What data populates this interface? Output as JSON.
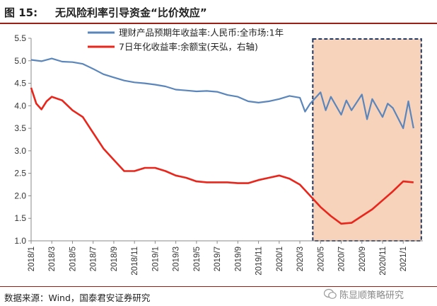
{
  "figure_label": "图 15:",
  "title": "无风险利率引导资金“比价效应”",
  "source": "数据来源：Wind，国泰君安证券研究",
  "watermark": "陈显顺策略研究",
  "colors": {
    "series1": "#5b86bb",
    "series2": "#e8261c",
    "highlight_fill": "#f7d3bc",
    "highlight_border": "#1f3864",
    "frame": "#9c1f16"
  },
  "chart_data": {
    "type": "line",
    "title": "无风险利率引导资金“比价效应”",
    "ylim": [
      1.0,
      5.5
    ],
    "yticks": [
      "1.0",
      "1.5",
      "2.0",
      "2.5",
      "3.0",
      "3.5",
      "4.0",
      "4.5",
      "5.0",
      "5.5"
    ],
    "x_range": [
      "2018-01",
      "2021-02"
    ],
    "xticks": [
      "2018/1",
      "2018/3",
      "2018/5",
      "2018/7",
      "2018/9",
      "2018/11",
      "2019/1",
      "2019/3",
      "2019/5",
      "2019/7",
      "2019/9",
      "2019/11",
      "2020/1",
      "2020/3",
      "2020/5",
      "2020/7",
      "2020/9",
      "2020/11",
      "2021/1"
    ],
    "legend_position": "top-right",
    "highlight_region": {
      "from": "2020-04",
      "to": "2021-02"
    },
    "series": [
      {
        "name": "理财产品预期年收益率:人民币:全市场:1年",
        "x": [
          "2018-01",
          "2018-02",
          "2018-03",
          "2018-04",
          "2018-05",
          "2018-06",
          "2018-07",
          "2018-08",
          "2018-09",
          "2018-10",
          "2018-11",
          "2018-12",
          "2019-01",
          "2019-02",
          "2019-03",
          "2019-04",
          "2019-05",
          "2019-06",
          "2019-07",
          "2019-08",
          "2019-09",
          "2019-10",
          "2019-11",
          "2019-12",
          "2020-01",
          "2020-02",
          "2020-03",
          "2020-03",
          "2020-04",
          "2020-05",
          "2020-05",
          "2020-06",
          "2020-07",
          "2020-07",
          "2020-08",
          "2020-09",
          "2020-09",
          "2020-10",
          "2020-11",
          "2020-11",
          "2020-12",
          "2021-01",
          "2021-01",
          "2021-02"
        ],
        "values": [
          5.02,
          4.99,
          5.05,
          4.98,
          4.97,
          4.93,
          4.82,
          4.7,
          4.63,
          4.56,
          4.52,
          4.5,
          4.47,
          4.43,
          4.36,
          4.34,
          4.32,
          4.33,
          4.31,
          4.24,
          4.2,
          4.1,
          4.07,
          4.1,
          4.15,
          4.22,
          4.18,
          3.87,
          4.05,
          4.3,
          3.9,
          4.2,
          3.8,
          4.12,
          3.9,
          4.25,
          3.7,
          4.15,
          3.75,
          4.05,
          3.95,
          3.5,
          4.1,
          3.5
        ]
      },
      {
        "name": "7日年化收益率:余额宝(天弘，右轴)",
        "x": [
          "2018-01",
          "2018-01",
          "2018-02",
          "2018-02",
          "2018-03",
          "2018-04",
          "2018-05",
          "2018-06",
          "2018-07",
          "2018-08",
          "2018-09",
          "2018-10",
          "2018-11",
          "2018-12",
          "2019-01",
          "2019-02",
          "2019-03",
          "2019-04",
          "2019-05",
          "2019-06",
          "2019-07",
          "2019-08",
          "2019-09",
          "2019-10",
          "2019-11",
          "2019-12",
          "2020-01",
          "2020-02",
          "2020-03",
          "2020-04",
          "2020-05",
          "2020-06",
          "2020-07",
          "2020-08",
          "2020-09",
          "2020-10",
          "2020-11",
          "2020-12",
          "2021-01",
          "2021-02"
        ],
        "values": [
          4.4,
          4.05,
          3.92,
          4.1,
          4.2,
          4.12,
          3.9,
          3.75,
          3.4,
          3.05,
          2.8,
          2.55,
          2.55,
          2.62,
          2.62,
          2.55,
          2.45,
          2.4,
          2.32,
          2.3,
          2.3,
          2.3,
          2.28,
          2.28,
          2.35,
          2.4,
          2.45,
          2.38,
          2.25,
          2.0,
          1.75,
          1.55,
          1.38,
          1.4,
          1.55,
          1.7,
          1.9,
          2.1,
          2.32,
          2.3
        ]
      }
    ]
  }
}
